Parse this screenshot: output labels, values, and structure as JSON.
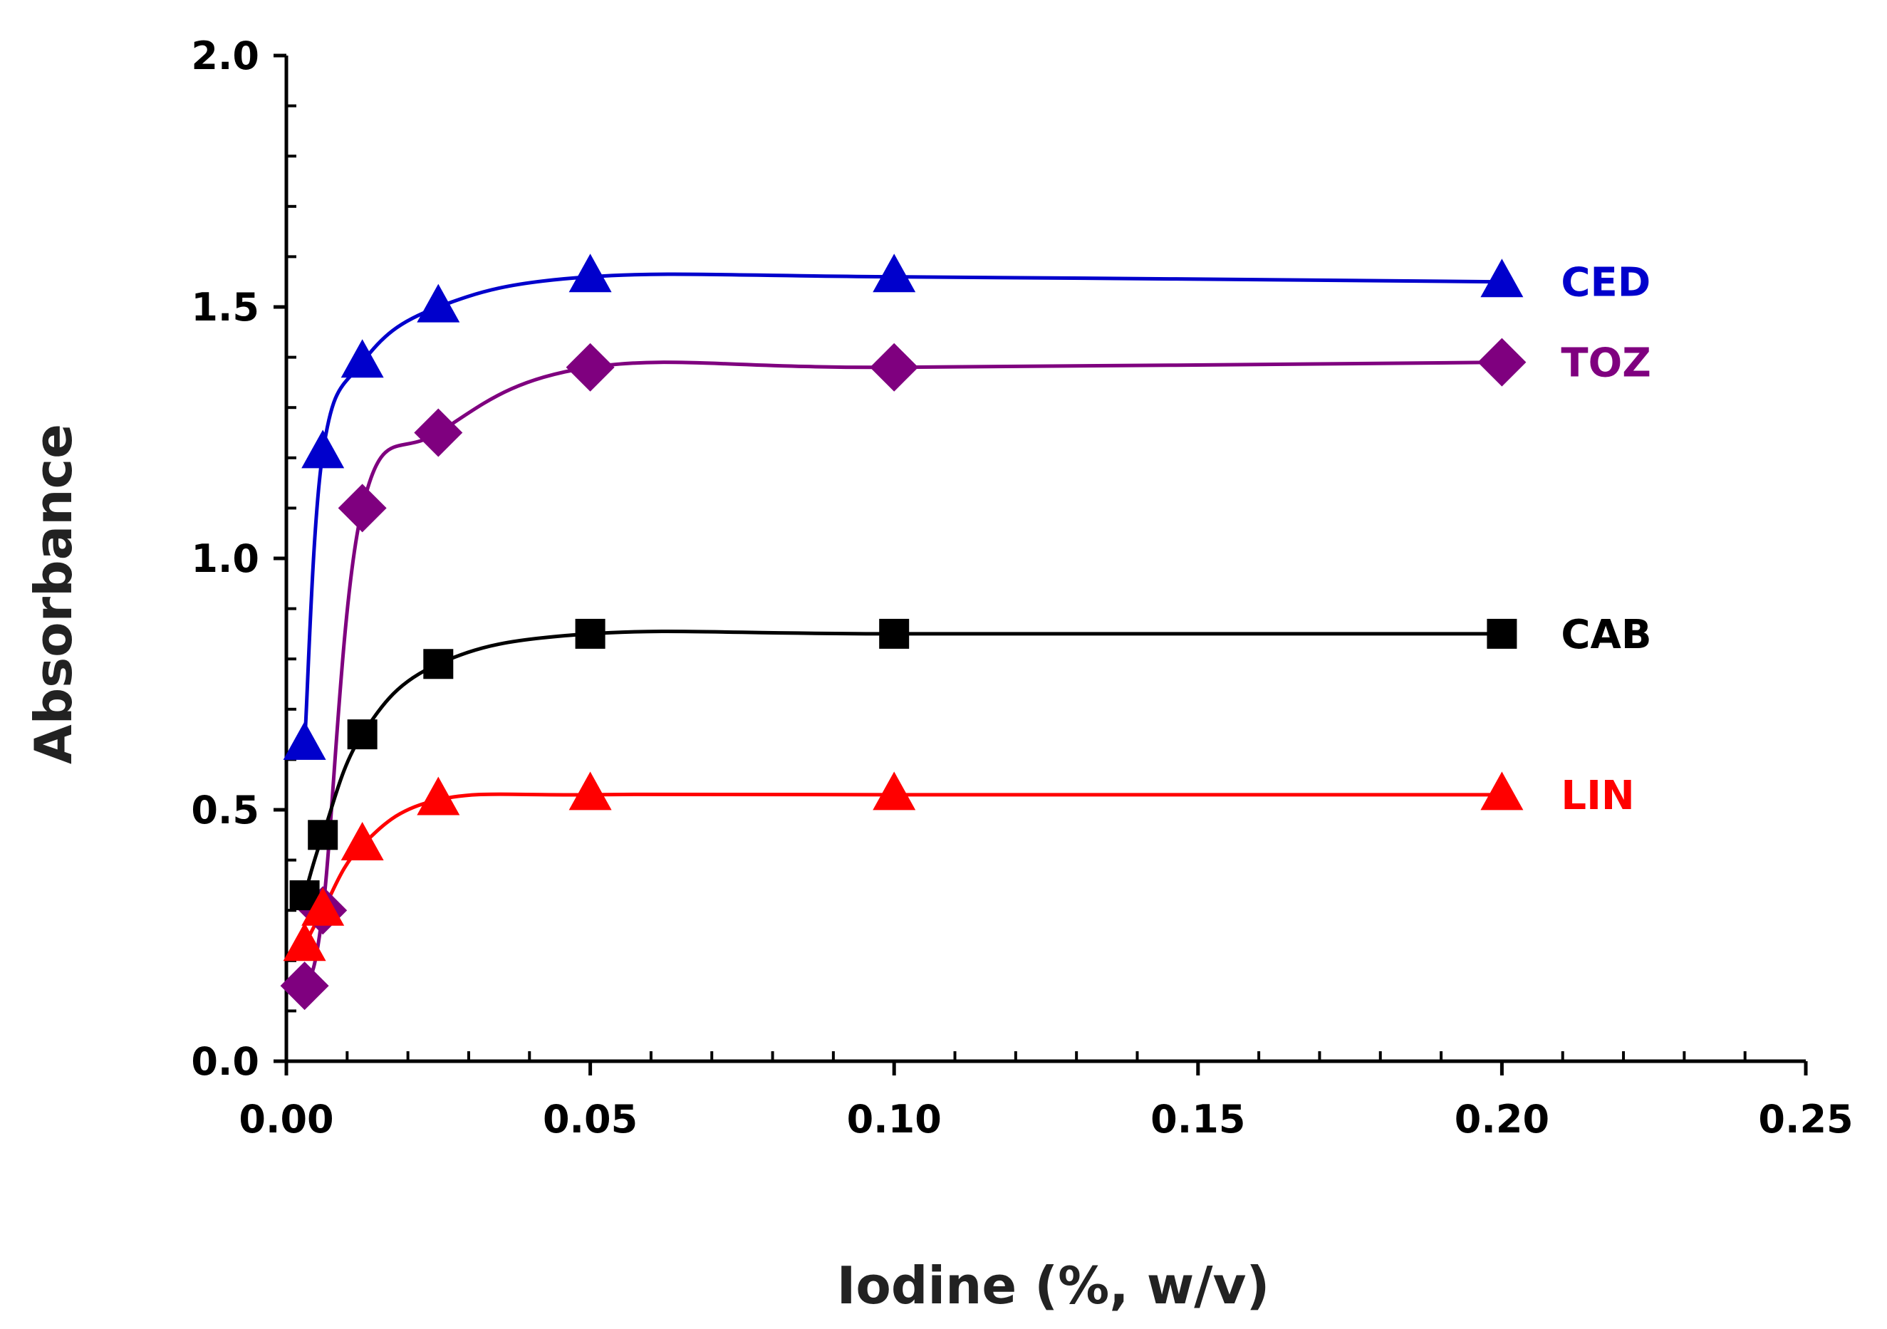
{
  "chart_data": {
    "type": "line",
    "title": "",
    "xlabel": "Iodine (%, w/v)",
    "ylabel": "Absorbance",
    "xlim": [
      0,
      0.25
    ],
    "ylim": [
      0,
      2.0
    ],
    "x_ticks": [
      "0.00",
      "0.05",
      "0.10",
      "0.15",
      "0.20",
      "0.25"
    ],
    "y_ticks": [
      "0.0",
      "0.5",
      "1.0",
      "1.5",
      "2.0"
    ],
    "grid": false,
    "legend": "inline labels at right end of each series",
    "series": [
      {
        "name": "CED",
        "color": "#0000cc",
        "marker": "triangle",
        "x": [
          0.003,
          0.006,
          0.0125,
          0.025,
          0.05,
          0.1,
          0.2
        ],
        "y": [
          0.63,
          1.21,
          1.39,
          1.5,
          1.56,
          1.56,
          1.55
        ]
      },
      {
        "name": "TOZ",
        "color": "#7f007f",
        "marker": "diamond",
        "x": [
          0.003,
          0.006,
          0.0125,
          0.025,
          0.05,
          0.1,
          0.2
        ],
        "y": [
          0.15,
          0.3,
          1.1,
          1.25,
          1.38,
          1.38,
          1.39
        ]
      },
      {
        "name": "CAB",
        "color": "#000000",
        "marker": "square",
        "x": [
          0.003,
          0.006,
          0.0125,
          0.025,
          0.05,
          0.1,
          0.2
        ],
        "y": [
          0.33,
          0.45,
          0.65,
          0.79,
          0.85,
          0.85,
          0.85
        ]
      },
      {
        "name": "LIN",
        "color": "#ff0000",
        "marker": "triangle",
        "x": [
          0.003,
          0.006,
          0.0125,
          0.025,
          0.05,
          0.1,
          0.2
        ],
        "y": [
          0.23,
          0.3,
          0.43,
          0.52,
          0.53,
          0.53,
          0.53
        ]
      }
    ]
  }
}
